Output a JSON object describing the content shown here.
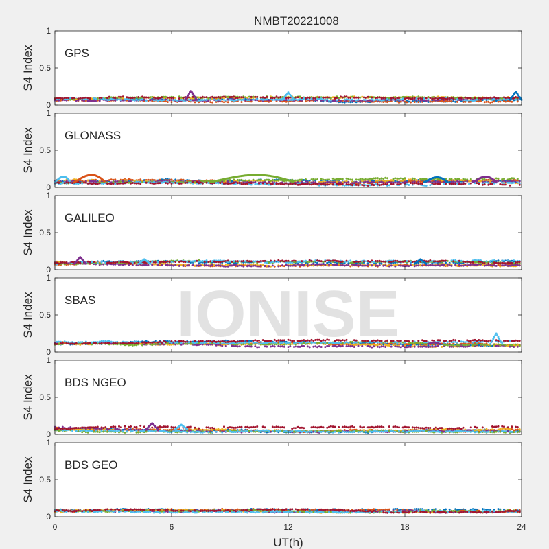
{
  "figure": {
    "title": "NMBT20221008",
    "xlabel": "UT(h)",
    "watermark": "IONISE",
    "xticks": [
      0,
      6,
      12,
      18,
      24
    ],
    "xlim": [
      0,
      24
    ]
  },
  "series_colors": [
    "#0072BD",
    "#D95319",
    "#EDB120",
    "#7E2F8E",
    "#77AC30",
    "#4DBEEE",
    "#A2142F"
  ],
  "chart_data": [
    {
      "type": "scatter",
      "panel_label": "GPS",
      "ylabel": "S4 Index",
      "xlim": [
        0,
        24
      ],
      "ylim": [
        0,
        1
      ],
      "yticks": [
        0,
        0.5,
        1
      ],
      "xticks": [
        0,
        6,
        12,
        18,
        24
      ],
      "baseline_s4": 0.07,
      "typical_range": [
        0.04,
        0.11
      ],
      "peaks": [
        {
          "x": 7.0,
          "y": 0.19
        },
        {
          "x": 12.0,
          "y": 0.17
        },
        {
          "x": 23.7,
          "y": 0.18
        }
      ]
    },
    {
      "type": "scatter",
      "panel_label": "GLONASS",
      "ylabel": "S4 Index",
      "xlim": [
        0,
        24
      ],
      "ylim": [
        0,
        1
      ],
      "yticks": [
        0,
        0.5,
        1
      ],
      "xticks": [
        0,
        6,
        12,
        18,
        24
      ],
      "baseline_s4": 0.07,
      "typical_range": [
        0.03,
        0.12
      ],
      "arcs": [
        {
          "x_start": 0.0,
          "x_end": 0.8,
          "peak": 0.16
        },
        {
          "x_start": 1.0,
          "x_end": 2.6,
          "peak": 0.19
        },
        {
          "x_start": 8.0,
          "x_end": 12.3,
          "peak": 0.19
        },
        {
          "x_start": 19.0,
          "x_end": 20.2,
          "peak": 0.15
        },
        {
          "x_start": 21.5,
          "x_end": 22.7,
          "peak": 0.16
        }
      ]
    },
    {
      "type": "scatter",
      "panel_label": "GALILEO",
      "ylabel": "S4 Index",
      "xlim": [
        0,
        24
      ],
      "ylim": [
        0,
        1
      ],
      "yticks": [
        0,
        0.5,
        1
      ],
      "xticks": [
        0,
        6,
        12,
        18,
        24
      ],
      "baseline_s4": 0.08,
      "typical_range": [
        0.05,
        0.12
      ],
      "peaks": [
        {
          "x": 1.3,
          "y": 0.17
        },
        {
          "x": 4.6,
          "y": 0.14
        },
        {
          "x": 18.8,
          "y": 0.14
        }
      ]
    },
    {
      "type": "scatter",
      "panel_label": "SBAS",
      "ylabel": "S4 Index",
      "xlim": [
        0,
        24
      ],
      "ylim": [
        0,
        1
      ],
      "yticks": [
        0,
        0.5,
        1
      ],
      "xticks": [
        0,
        6,
        12,
        18,
        24
      ],
      "baseline_s4": 0.11,
      "typical_range": [
        0.07,
        0.16
      ],
      "peaks": [
        {
          "x": 19.5,
          "y": 0.13
        },
        {
          "x": 22.7,
          "y": 0.25
        }
      ]
    },
    {
      "type": "scatter",
      "panel_label": "BDS NGEO",
      "ylabel": "S4 Index",
      "xlim": [
        0,
        24
      ],
      "ylim": [
        0,
        1
      ],
      "yticks": [
        0,
        0.5,
        1
      ],
      "xticks": [
        0,
        6,
        12,
        18,
        24
      ],
      "baseline_s4": 0.07,
      "typical_range": [
        0.03,
        0.12
      ],
      "peaks": [
        {
          "x": 5.0,
          "y": 0.15
        },
        {
          "x": 6.5,
          "y": 0.13
        }
      ]
    },
    {
      "type": "scatter",
      "panel_label": "BDS GEO",
      "ylabel": "S4 Index",
      "xlim": [
        0,
        24
      ],
      "ylim": [
        0,
        1
      ],
      "yticks": [
        0,
        0.5,
        1
      ],
      "xticks": [
        0,
        6,
        12,
        18,
        24
      ],
      "baseline_s4": 0.08,
      "typical_range": [
        0.06,
        0.1
      ]
    }
  ]
}
